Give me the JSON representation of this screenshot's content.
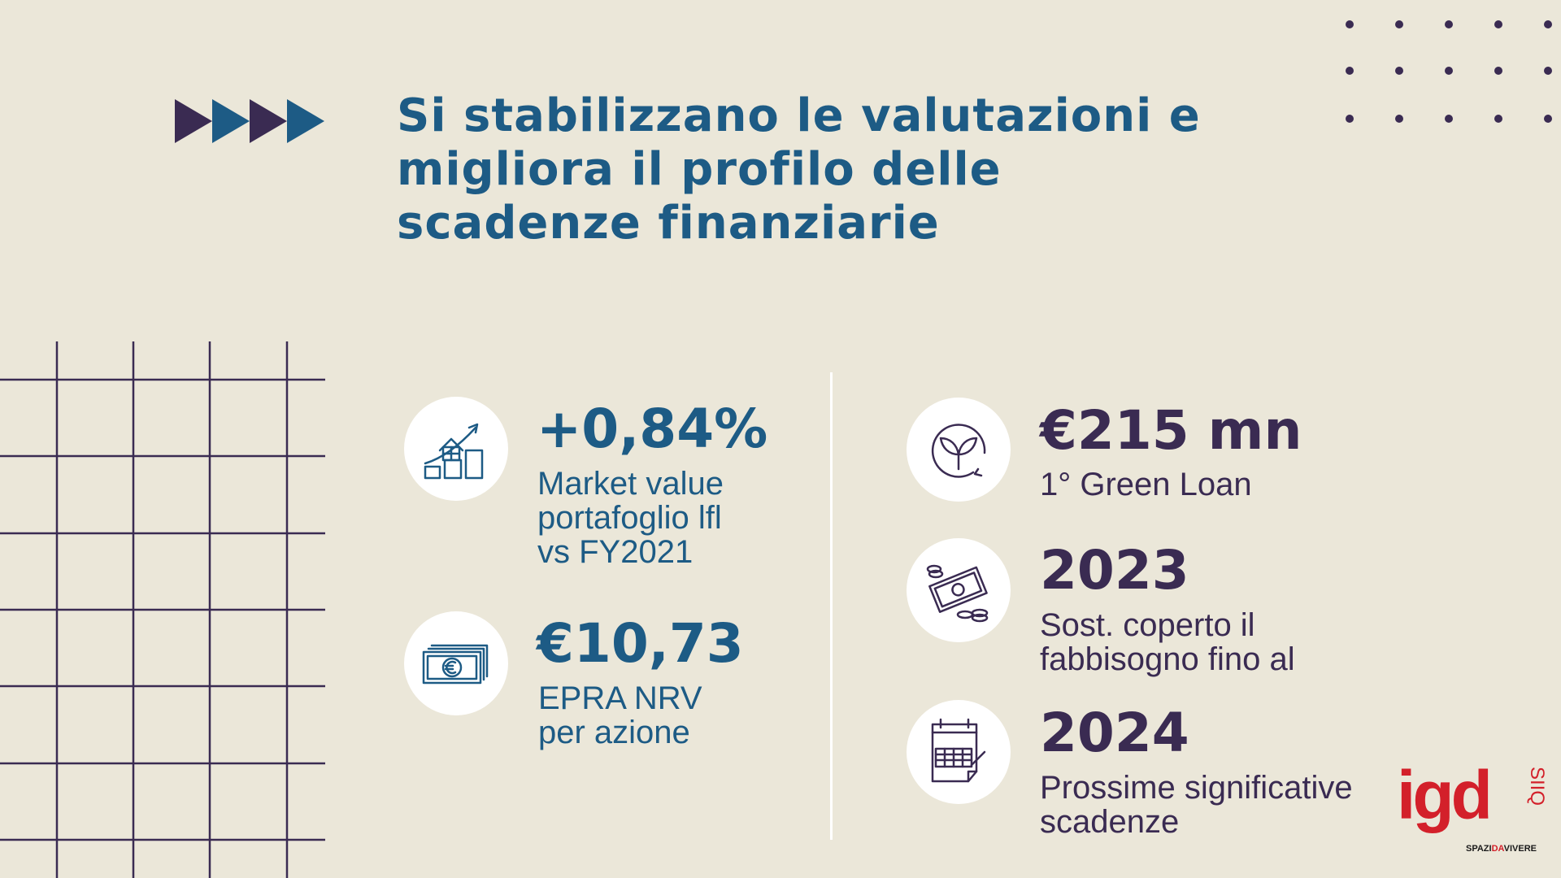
{
  "title": {
    "lines": [
      "Si stabilizzano le valutazioni e",
      "migliora il profilo delle",
      "scadenze finanziarie"
    ]
  },
  "colors": {
    "background": "#ebe7d9",
    "blue": "#1d5b85",
    "purple": "#3a2b52",
    "brand_red": "#d3202a"
  },
  "kpis_left": [
    {
      "icon": "house-growth-chart-icon",
      "value": "+0,84%",
      "label": [
        "Market value",
        "portafoglio lfl",
        "vs FY2021"
      ]
    },
    {
      "icon": "euro-banknotes-icon",
      "value": "€10,73",
      "label": [
        "EPRA NRV",
        "per azione"
      ]
    }
  ],
  "kpis_right": [
    {
      "icon": "green-leaf-cycle-icon",
      "value": "€215 mn",
      "label": [
        "1° Green Loan"
      ]
    },
    {
      "icon": "money-coins-icon",
      "value": "2023",
      "label": [
        "Sost. coperto il",
        "fabbisogno fino al"
      ]
    },
    {
      "icon": "calendar-icon",
      "value": "2024",
      "label": [
        "Prossime significative",
        "scadenze"
      ]
    }
  ],
  "logo": {
    "brand": "igd",
    "suffix": "SIIQ",
    "tagline_a": "SPAZI",
    "tagline_b": "DA",
    "tagline_c": "VIVERE"
  }
}
